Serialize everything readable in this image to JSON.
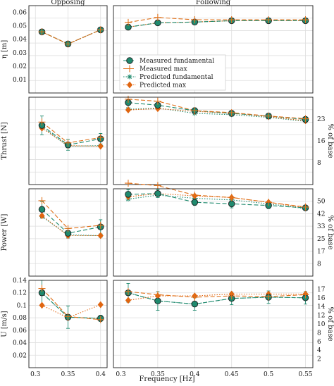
{
  "colors": {
    "measured_fundamental": "#1f8a6e",
    "measured_max": "#e0711a",
    "predicted_fundamental": "#1f8a6e",
    "predicted_max": "#e06510"
  },
  "chart_data": {
    "type": "scatter",
    "xlabel": "Frequency [Hz]",
    "columns": [
      {
        "title": "Opposing",
        "x": [
          0.31,
          0.35,
          0.4
        ],
        "xlim": [
          0.29,
          0.41
        ],
        "xticks": [
          {
            "v": 0.3,
            "label": "0.3"
          },
          {
            "v": 0.35,
            "label": "0.35"
          },
          {
            "v": 0.4,
            "label": "0.4"
          }
        ]
      },
      {
        "title": "Following",
        "x": [
          0.31,
          0.35,
          0.4,
          0.45,
          0.5,
          0.55
        ],
        "xlim": [
          0.29,
          0.56
        ],
        "xticks": [
          {
            "v": 0.3,
            "label": "0.3"
          },
          {
            "v": 0.35,
            "label": "0.35"
          },
          {
            "v": 0.4,
            "label": "0.4"
          },
          {
            "v": 0.45,
            "label": "0.45"
          },
          {
            "v": 0.5,
            "label": "0.5"
          },
          {
            "v": 0.55,
            "label": "0.55"
          }
        ]
      }
    ],
    "legend": [
      "Measured fundamental",
      "Measured max",
      "Predicted fundamental",
      "Predicted max"
    ],
    "rows": [
      {
        "ylabel": "η [m]",
        "ylim": [
          0,
          0.065
        ],
        "yticks": [
          "0.01",
          "0.02",
          "0.03",
          "0.04",
          "0.05",
          "0.06"
        ],
        "right_label": "",
        "right_ticks": [],
        "opposing": {
          "measured_fundamental": [
            0.0455,
            0.0365,
            0.047
          ],
          "measured_max": [
            0.0455,
            0.0365,
            0.047
          ],
          "predicted_fundamental": [
            0.0455,
            0.0365,
            0.047
          ],
          "predicted_max": [
            0.0455,
            0.0365,
            0.047
          ]
        },
        "following": {
          "measured_fundamental": [
            0.049,
            0.0522,
            0.0528,
            0.0538,
            0.0538,
            0.0538
          ],
          "measured_max": [
            0.0525,
            0.0562,
            0.0545,
            0.0545,
            0.0545,
            0.0545
          ],
          "predicted_fundamental": [
            0.049,
            0.0522,
            0.0528,
            0.0538,
            0.0538,
            0.0538
          ],
          "predicted_max": [
            0.049,
            0.0522,
            0.0528,
            0.0538,
            0.0538,
            0.0538
          ]
        }
      },
      {
        "ylabel": "Thrust [N]",
        "ylim": [
          0,
          65
        ],
        "yticks": [],
        "right_label": "% of base",
        "right_ticks": [
          "8",
          "16",
          "23"
        ],
        "opposing": {
          "measured_fundamental": [
            44,
            29.5,
            34
          ],
          "measured_max": [
            46.5,
            31,
            35
          ],
          "predicted_fundamental": [
            43,
            28.5,
            29
          ],
          "predicted_max": [
            42,
            29,
            28.5
          ],
          "error": [
            7,
            4,
            4
          ]
        },
        "following": {
          "measured_fundamental": [
            61,
            59,
            55,
            53,
            51,
            48.5
          ],
          "measured_max": [
            63.5,
            62,
            55,
            53.5,
            51,
            49
          ],
          "predicted_fundamental": [
            56,
            57,
            53,
            52,
            50,
            47
          ],
          "predicted_max": [
            55.5,
            56.5,
            54.5,
            53,
            50.5,
            47.5
          ],
          "error": [
            4,
            3,
            2,
            2,
            2,
            2
          ]
        }
      },
      {
        "ylabel": "Power [W]",
        "ylim": [
          0,
          110
        ],
        "yticks": [],
        "right_label": "% of base",
        "right_ticks": [
          "8",
          "17",
          "25",
          "33",
          "42",
          "50"
        ],
        "opposing": {
          "measured_fundamental": [
            84,
            54,
            62
          ],
          "measured_max": [
            95,
            60,
            64
          ],
          "predicted_fundamental": [
            75,
            52,
            51
          ],
          "predicted_max": [
            76,
            51,
            51
          ],
          "error": [
            10,
            6,
            9
          ]
        },
        "following": {
          "measured_fundamental": [
            103,
            104,
            93,
            91,
            89,
            86
          ],
          "measured_max": [
            117,
            114,
            102,
            99,
            93,
            87
          ],
          "predicted_fundamental": [
            97,
            102,
            98,
            96,
            91,
            85
          ],
          "predicted_max": [
            100,
            104,
            101,
            99,
            93,
            86
          ],
          "error": [
            6,
            5,
            4,
            5,
            4,
            3
          ]
        }
      },
      {
        "ylabel": "U [m/s]",
        "ylim": [
          0,
          0.14
        ],
        "yticks": [
          "0.02",
          "0.04",
          "0.06",
          "0.08",
          "0.1",
          "0.12",
          "0.14"
        ],
        "right_label": "% of base",
        "right_ticks": [
          "2",
          "4",
          "6",
          "8",
          "10",
          "12",
          "14",
          "16",
          "17"
        ],
        "opposing": {
          "measured_fundamental": [
            0.12,
            0.081,
            0.079
          ],
          "measured_max": [
            0.127,
            0.082,
            0.077
          ],
          "predicted_fundamental": [
            0.12,
            0.081,
            0.079
          ],
          "predicted_max": [
            0.1,
            0.08,
            0.101
          ],
          "error": [
            0.02,
            0.018,
            0.005
          ]
        },
        "following": {
          "measured_fundamental": [
            0.12,
            0.107,
            0.102,
            0.111,
            0.113,
            0.112
          ],
          "measured_max": [
            0.122,
            0.117,
            0.113,
            0.115,
            0.114,
            0.117
          ],
          "predicted_fundamental": [
            0.12,
            0.107,
            0.102,
            0.111,
            0.113,
            0.112
          ],
          "predicted_max": [
            0.108,
            0.115,
            0.115,
            0.118,
            0.118,
            0.118
          ],
          "error": [
            0.015,
            0.015,
            0.01,
            0.01,
            0.01,
            0.01
          ]
        }
      }
    ]
  }
}
